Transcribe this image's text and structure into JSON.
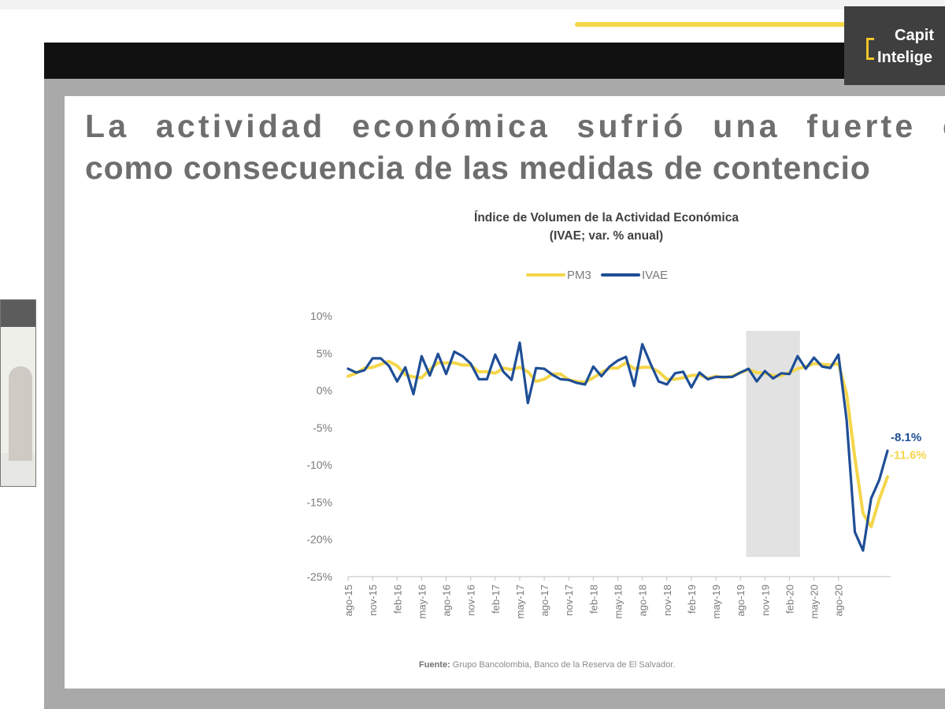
{
  "slide": {
    "heading_line1": "La actividad económica sufrió una fuerte co",
    "heading_line2": "como consecuencia de las medidas de contencio",
    "source_label": "Fuente:",
    "source_text": "Grupo Bancolombia, Banco de la Reserva de El Salvador."
  },
  "brand": {
    "line1": "Capit",
    "line2": "Intelige"
  },
  "colors": {
    "pm3": "#f4d64b",
    "ivae": "#1f4e96",
    "shade": "#e2e2e2",
    "axis": "#bfbfbf"
  },
  "chart_data": {
    "type": "line",
    "title": "Índice de Volumen de la Actividad Económica",
    "subtitle": "(IVAE; var. % anual)",
    "xlabel": "",
    "ylabel": "",
    "ylim": [
      -25,
      10
    ],
    "yticks": [
      10,
      5,
      0,
      -5,
      -10,
      -15,
      -20,
      -25
    ],
    "ytick_labels": [
      "10%",
      "5%",
      "0%",
      "-5%",
      "-10%",
      "-15%",
      "-20%",
      "-25%"
    ],
    "x_tick_labels": [
      "ago-15",
      "nov-15",
      "feb-16",
      "may-16",
      "ago-16",
      "nov-16",
      "feb-17",
      "may-17",
      "ago-17",
      "nov-17",
      "feb-18",
      "may-18",
      "ago-18",
      "nov-18",
      "feb-19",
      "may-19",
      "ago-19",
      "nov-19",
      "feb-20",
      "may-20",
      "ago-20"
    ],
    "shaded_period": [
      "sep-19",
      "mar-20"
    ],
    "legend": [
      "PM3",
      "IVAE"
    ],
    "series": [
      {
        "name": "IVAE",
        "values": [
          2.9,
          2.4,
          2.7,
          4.3,
          4.3,
          3.3,
          1.2,
          3.1,
          -0.5,
          4.6,
          2.0,
          4.9,
          2.2,
          5.2,
          4.6,
          3.6,
          1.5,
          1.5,
          4.8,
          2.5,
          1.4,
          6.4,
          -1.7,
          3.0,
          2.9,
          2.1,
          1.5,
          1.4,
          1.0,
          0.8,
          3.2,
          1.9,
          3.2,
          4.0,
          4.5,
          0.6,
          6.2,
          3.6,
          1.2,
          0.8,
          2.3,
          2.5,
          0.4,
          2.4,
          1.5,
          1.8,
          1.8,
          1.8,
          2.4,
          2.9,
          1.2,
          2.6,
          1.6,
          2.3,
          2.2,
          4.6,
          2.9,
          4.4,
          3.2,
          3.0,
          4.8,
          -4.0,
          -19.0,
          -21.5,
          -14.5,
          -12.0,
          -8.1
        ]
      },
      {
        "name": "PM3",
        "values": [
          1.9,
          2.3,
          3.0,
          3.1,
          3.5,
          3.9,
          3.3,
          2.1,
          1.8,
          1.7,
          2.8,
          3.7,
          3.7,
          3.7,
          3.4,
          3.4,
          2.5,
          2.5,
          2.3,
          3.0,
          2.8,
          3.1,
          2.5,
          1.2,
          1.5,
          2.2,
          2.2,
          1.4,
          1.2,
          1.1,
          1.7,
          2.4,
          3.0,
          3.0,
          3.7,
          2.9,
          3.1,
          3.1,
          2.5,
          1.5,
          1.5,
          1.7,
          2.0,
          2.1,
          1.6,
          1.9,
          1.7,
          1.9,
          2.4,
          2.8,
          2.4,
          2.3,
          2.0,
          2.0,
          2.4,
          2.9,
          3.2,
          3.6,
          3.5,
          3.4,
          3.6,
          -0.5,
          -9.0,
          -16.5,
          -18.3,
          -14.6,
          -11.6
        ]
      }
    ],
    "annotations": [
      {
        "series": "IVAE",
        "text": "-8.1%"
      },
      {
        "series": "PM3",
        "text": "-11.6%"
      }
    ]
  }
}
